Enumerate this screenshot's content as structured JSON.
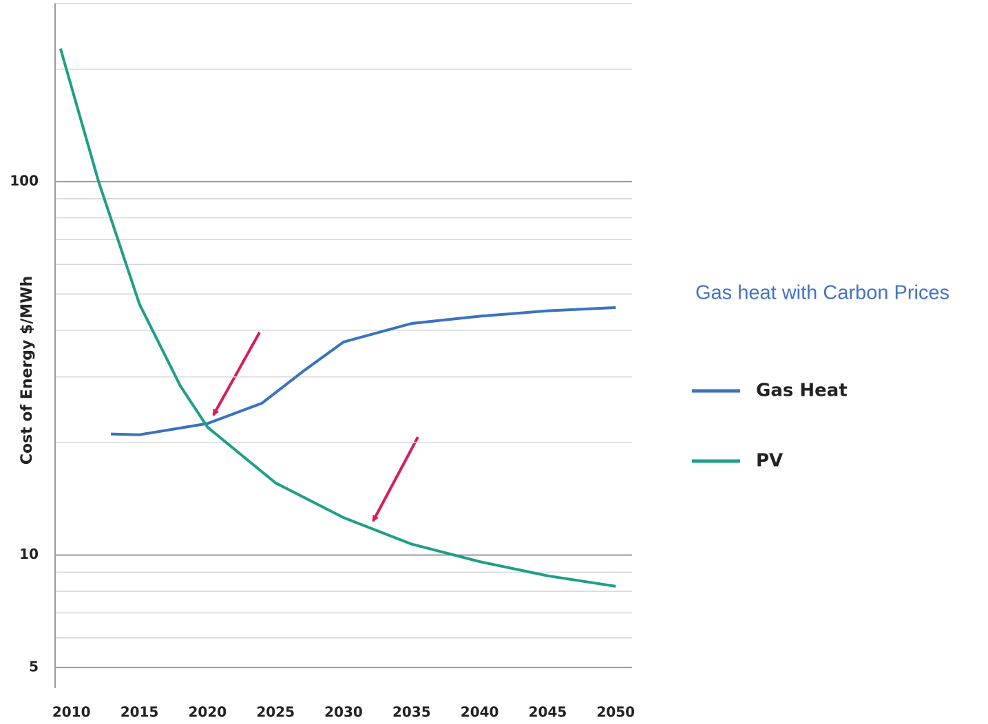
{
  "chart_data": {
    "type": "line",
    "y_label": "Cost of Energy $/MWh",
    "annotation": "Gas heat with Carbon Prices",
    "log_y": true,
    "grid": true,
    "xlim": [
      2008.8,
      2051.2
    ],
    "xticks": [
      2010,
      2015,
      2020,
      2025,
      2030,
      2035,
      2040,
      2045,
      2050
    ],
    "ylim": [
      4.4,
      300
    ],
    "yticks": [
      5,
      10,
      100
    ],
    "minor_yticks": [
      6,
      7,
      8,
      9,
      20,
      30,
      40,
      50,
      60,
      70,
      80,
      90,
      200,
      300
    ],
    "legend": "right",
    "series": [
      {
        "name": "Gas Heat",
        "color": "#3a72c0",
        "x": [
          2012.9,
          2015,
          2020,
          2024,
          2027,
          2030,
          2035,
          2040,
          2045,
          2050
        ],
        "values": [
          21.1,
          21,
          22.5,
          25.5,
          31,
          37.2,
          41.7,
          43.6,
          45.1,
          46
        ]
      },
      {
        "name": "PV",
        "color": "#1f9e89",
        "x": [
          2009.2,
          2012,
          2015,
          2018,
          2020,
          2025,
          2030,
          2035,
          2040,
          2045,
          2050
        ],
        "values": [
          227,
          100,
          47,
          28.4,
          22,
          15.6,
          12.6,
          10.7,
          9.6,
          8.8,
          8.25
        ]
      }
    ]
  }
}
